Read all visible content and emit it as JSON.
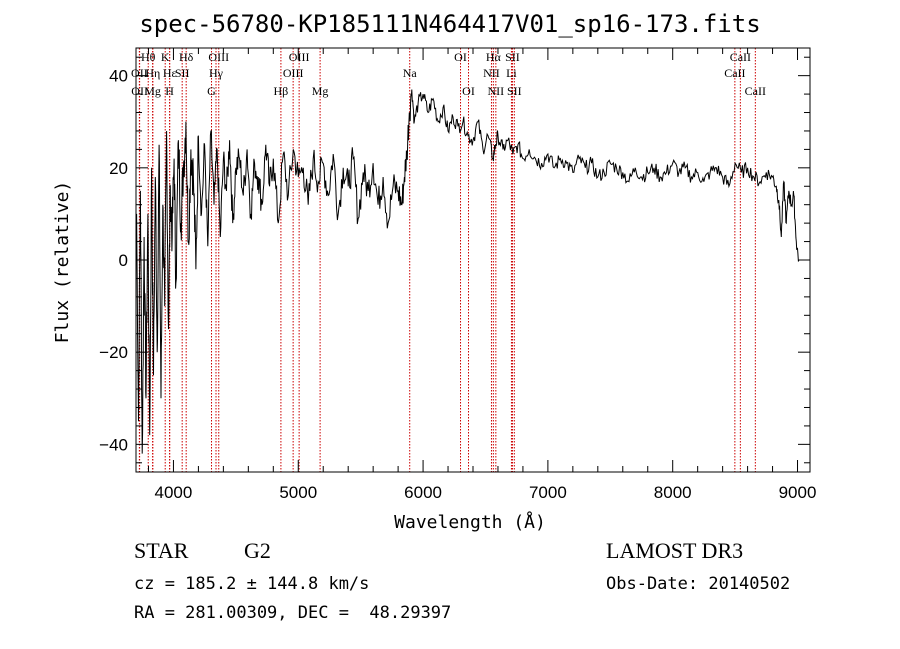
{
  "chart_data": {
    "type": "line",
    "title": "spec-56780-KP185111N464417V01_sp16-173.fits",
    "xlabel": "Wavelength (Å)",
    "ylabel": "Flux (relative)",
    "xlim": [
      3700,
      9100
    ],
    "ylim": [
      -46,
      46
    ],
    "xticks": [
      4000,
      5000,
      6000,
      7000,
      8000,
      9000
    ],
    "xtick_labels": [
      "4000",
      "5000",
      "6000",
      "7000",
      "8000",
      "9000"
    ],
    "yticks": [
      -40,
      -20,
      0,
      20,
      40
    ],
    "ytick_labels": [
      "−40",
      "−20",
      "0",
      "20",
      "40"
    ],
    "series": [
      {
        "name": "flux",
        "x": [
          3705,
          3720,
          3735,
          3750,
          3765,
          3780,
          3795,
          3810,
          3825,
          3840,
          3855,
          3870,
          3885,
          3900,
          3915,
          3930,
          3945,
          3960,
          3975,
          3990,
          4005,
          4020,
          4040,
          4060,
          4080,
          4100,
          4120,
          4140,
          4160,
          4180,
          4200,
          4225,
          4250,
          4275,
          4300,
          4325,
          4350,
          4375,
          4400,
          4425,
          4450,
          4475,
          4500,
          4530,
          4560,
          4590,
          4620,
          4650,
          4680,
          4710,
          4740,
          4770,
          4800,
          4840,
          4880,
          4920,
          4960,
          5000,
          5040,
          5080,
          5120,
          5160,
          5200,
          5240,
          5280,
          5320,
          5360,
          5400,
          5440,
          5480,
          5520,
          5560,
          5600,
          5640,
          5680,
          5720,
          5760,
          5800,
          5830,
          5850,
          5870,
          5890,
          5910,
          5930,
          5960,
          6000,
          6040,
          6080,
          6120,
          6160,
          6200,
          6240,
          6280,
          6320,
          6360,
          6400,
          6440,
          6480,
          6520,
          6560,
          6580,
          6600,
          6640,
          6680,
          6720,
          6760,
          6800,
          6850,
          6900,
          6950,
          7000,
          7050,
          7100,
          7150,
          7200,
          7250,
          7300,
          7350,
          7400,
          7450,
          7500,
          7550,
          7600,
          7650,
          7700,
          7750,
          7800,
          7850,
          7900,
          7950,
          8000,
          8050,
          8100,
          8150,
          8200,
          8250,
          8300,
          8350,
          8400,
          8450,
          8500,
          8550,
          8600,
          8650,
          8700,
          8750,
          8800,
          8830,
          8850,
          8870,
          8890,
          8910,
          8930,
          8950,
          8970,
          8990,
          9010
        ],
        "y": [
          10,
          -35,
          15,
          -42,
          5,
          -30,
          10,
          -38,
          20,
          -25,
          18,
          -20,
          25,
          -30,
          12,
          -10,
          28,
          -15,
          16,
          5,
          22,
          -5,
          26,
          8,
          20,
          30,
          4,
          24,
          18,
          -2,
          27,
          10,
          25,
          3,
          28,
          12,
          24,
          5,
          22,
          15,
          26,
          8,
          20,
          22,
          14,
          24,
          10,
          21,
          18,
          12,
          25,
          16,
          22,
          8,
          23,
          14,
          24,
          18,
          20,
          12,
          22,
          17,
          21,
          14,
          23,
          10,
          20,
          16,
          22,
          9,
          19,
          15,
          21,
          12,
          18,
          8,
          16,
          15,
          12,
          18,
          23,
          32,
          37,
          30,
          34,
          36,
          32,
          35,
          30,
          33,
          28,
          31,
          29,
          30,
          27,
          26,
          30,
          24,
          27,
          22,
          25,
          27,
          24,
          26,
          23,
          25,
          22,
          24,
          22,
          21,
          23,
          20,
          22,
          21,
          19,
          22,
          20,
          21,
          18,
          19,
          21,
          20,
          19,
          17,
          20,
          18,
          19,
          20,
          18,
          19,
          21,
          19,
          20,
          18,
          19,
          17,
          19,
          20,
          18,
          16,
          21,
          19,
          20,
          18,
          17,
          19,
          18,
          16,
          13,
          5,
          17,
          8,
          15,
          12,
          14,
          4,
          0
        ]
      }
    ],
    "line_markers": [
      {
        "label": "Hδ",
        "x": 4102,
        "row": 0
      },
      {
        "label": "OII",
        "x": 3727,
        "row": 1
      },
      {
        "label": "OII",
        "x": 3729,
        "row": 2
      },
      {
        "label": "Hθ",
        "x": 3798,
        "row": 0
      },
      {
        "label": "Hη",
        "x": 3835,
        "row": 1
      },
      {
        "label": "Mg",
        "x": 3833,
        "row": 2
      },
      {
        "label": "K",
        "x": 3934,
        "row": 0
      },
      {
        "label": "Hε",
        "x": 3970,
        "row": 1
      },
      {
        "label": "H",
        "x": 3969,
        "row": 2
      },
      {
        "label": "SII",
        "x": 4070,
        "row": 1
      },
      {
        "label": "OIII",
        "x": 4363,
        "row": 0
      },
      {
        "label": "Hγ",
        "x": 4341,
        "row": 1
      },
      {
        "label": "G",
        "x": 4305,
        "row": 2
      },
      {
        "label": "OIII",
        "x": 5007,
        "row": 0
      },
      {
        "label": "OIII",
        "x": 4959,
        "row": 1
      },
      {
        "label": "Hβ",
        "x": 4861,
        "row": 2
      },
      {
        "label": "Mg",
        "x": 5175,
        "row": 2
      },
      {
        "label": "Na",
        "x": 5893,
        "row": 1
      },
      {
        "label": "OI",
        "x": 6300,
        "row": 0
      },
      {
        "label": "OI",
        "x": 6364,
        "row": 2
      },
      {
        "label": "Hα",
        "x": 6563,
        "row": 0
      },
      {
        "label": "SII",
        "x": 6716,
        "row": 0
      },
      {
        "label": "NII",
        "x": 6548,
        "row": 1
      },
      {
        "label": "Li",
        "x": 6708,
        "row": 1
      },
      {
        "label": "NII",
        "x": 6583,
        "row": 2
      },
      {
        "label": "SII",
        "x": 6731,
        "row": 2
      },
      {
        "label": "CaII",
        "x": 8542,
        "row": 0
      },
      {
        "label": "CaII",
        "x": 8498,
        "row": 1
      },
      {
        "label": "CaII",
        "x": 8662,
        "row": 2
      }
    ],
    "marker_color": "#cc0000"
  },
  "info": {
    "object_class": "STAR",
    "subclass": "G2",
    "survey": "LAMOST DR3",
    "cz": "cz = 185.2 ± 144.8 km/s",
    "obs_date": "Obs-Date: 20140502",
    "coords": "RA = 281.00309, DEC =  48.29397"
  }
}
